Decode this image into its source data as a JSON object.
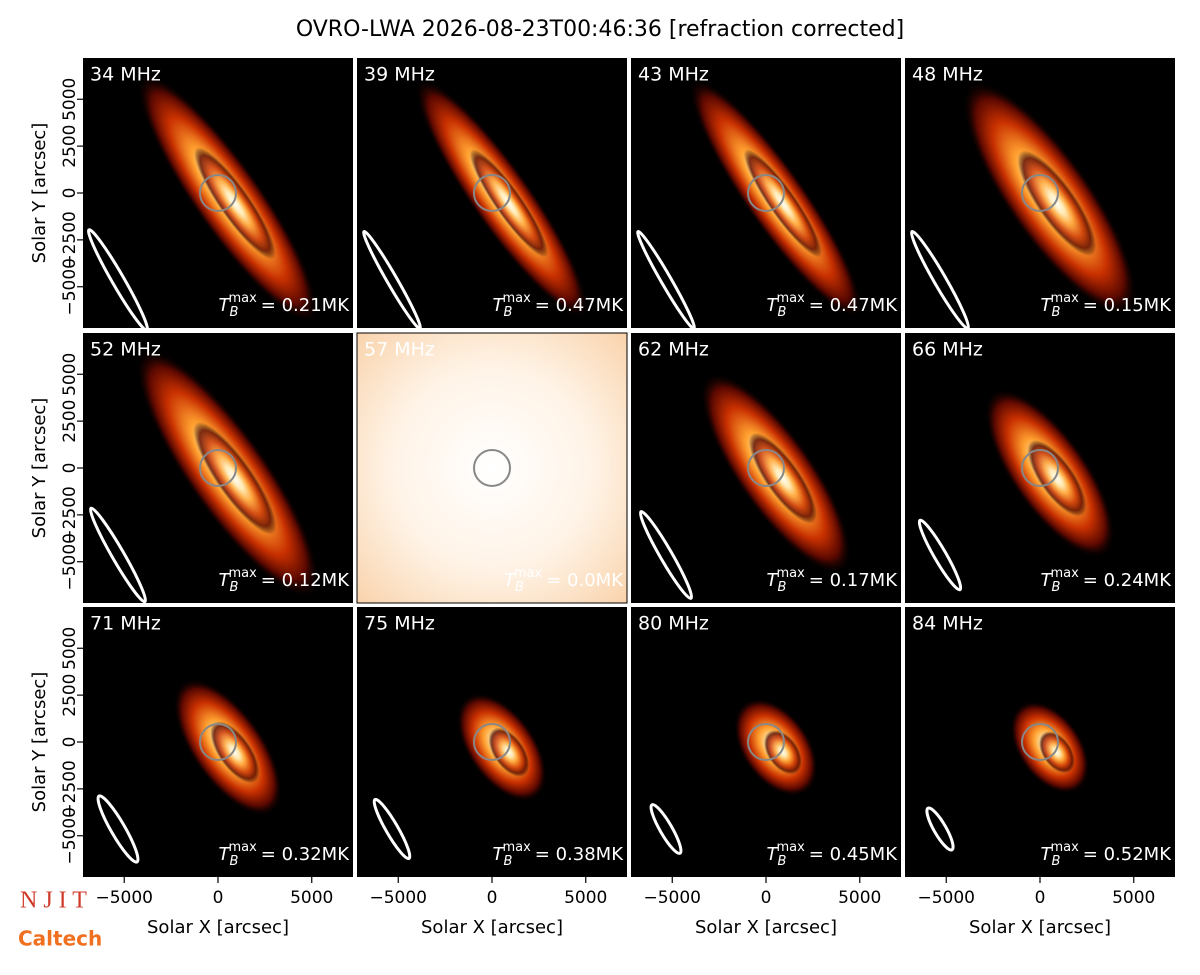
{
  "title": "OVRO-LWA 2026-08-23T00:46:36 [refraction corrected]",
  "xlabel": "Solar X [arcsec]",
  "ylabel": "Solar Y [arcsec]",
  "xlim": [
    -7200,
    7200
  ],
  "ylim": [
    -7200,
    7200
  ],
  "xticks": [
    {
      "value": -5000,
      "label": "−5000"
    },
    0,
    5000
  ],
  "yticks": [
    {
      "value": -5000,
      "label": "−5000"
    },
    {
      "value": -2500,
      "label": "−2500"
    },
    0,
    2500,
    5000
  ],
  "tb_symbol": {
    "base": "T",
    "sub": "B",
    "sup": "max"
  },
  "logos": [
    "N J I T",
    "Caltech"
  ],
  "chart_data": [
    {
      "type": "image",
      "title": "34 MHz",
      "annotation": "= 0.21MK"
    },
    {
      "type": "image",
      "title": "39 MHz",
      "annotation": "= 0.47MK"
    },
    {
      "type": "image",
      "title": "43 MHz",
      "annotation": "= 0.47MK"
    },
    {
      "type": "image",
      "title": "48 MHz",
      "annotation": "= 0.15MK"
    },
    {
      "type": "image",
      "title": "52 MHz",
      "annotation": "= 0.12MK"
    },
    {
      "type": "image",
      "title": "57 MHz",
      "annotation": "= 0.0MK"
    },
    {
      "type": "image",
      "title": "62 MHz",
      "annotation": "= 0.17MK"
    },
    {
      "type": "image",
      "title": "66 MHz",
      "annotation": "= 0.24MK"
    },
    {
      "type": "image",
      "title": "71 MHz",
      "annotation": "= 0.32MK"
    },
    {
      "type": "image",
      "title": "75 MHz",
      "annotation": "= 0.38MK"
    },
    {
      "type": "image",
      "title": "80 MHz",
      "annotation": "= 0.45MK"
    },
    {
      "type": "image",
      "title": "84 MHz",
      "annotation": "= 0.52MK"
    }
  ]
}
